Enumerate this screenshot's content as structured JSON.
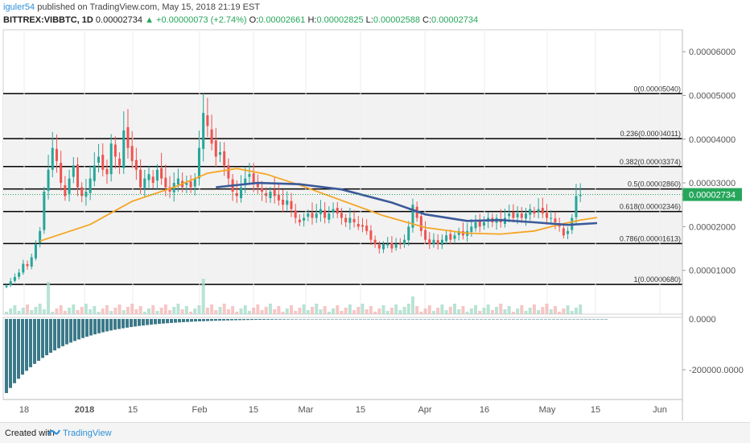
{
  "header": {
    "author": "iguler54",
    "published_text": "published on TradingView.com, May 15, 2018 21:19 EST",
    "symbol": "BITTREX:VIBBTC, 1D",
    "last": "0.00002734",
    "change": "▲ +0.00000073 (+2.74%)",
    "ohlc": [
      {
        "key": "O:",
        "value": "0.00002661"
      },
      {
        "key": "H:",
        "value": "0.00002825"
      },
      {
        "key": "L:",
        "value": "0.00002588"
      },
      {
        "key": "C:",
        "value": "0.00002734"
      }
    ]
  },
  "footer": {
    "created_with": "Created with",
    "brand": "TradingView"
  },
  "colors": {
    "up": "#26a69a",
    "down": "#ef5350",
    "ma_fast": "#f5a623",
    "ma_slow": "#3b5a9a",
    "fib_band": "#f2f2f2",
    "last_price_bg": "#26a65b",
    "depth": "#3c7a89"
  },
  "chart_data": {
    "type": "candlestick",
    "price_axis": {
      "ticks": [
        "0.00006000",
        "0.00005000",
        "0.00004000",
        "0.00003000",
        "0.00002000",
        "0.00001000",
        "0.0000"
      ],
      "range": [
        0.0,
        6.5e-05
      ]
    },
    "lower_axis": {
      "ticks": [
        "0.0000",
        "-200000.0000"
      ]
    },
    "x_ticks": [
      "18",
      "2018",
      "15",
      "Feb",
      "15",
      "Mar",
      "15",
      "Apr",
      "16",
      "May",
      "15",
      "Jun"
    ],
    "last_price_label": "0.00002734",
    "fib_levels": [
      {
        "ratio": "0",
        "value": 5.04e-05,
        "label": "0(0.00005040)"
      },
      {
        "ratio": "0.236",
        "value": 4.011e-05,
        "label": "0.236(0.00004011)"
      },
      {
        "ratio": "0.382",
        "value": 3.374e-05,
        "label": "0.382(0.00003374)"
      },
      {
        "ratio": "0.5",
        "value": 2.86e-05,
        "label": "0.5(0.00002860)"
      },
      {
        "ratio": "0.618",
        "value": 2.346e-05,
        "label": "0.618(0.00002346)"
      },
      {
        "ratio": "0.786",
        "value": 1.613e-05,
        "label": "0.786(0.00001613)"
      },
      {
        "ratio": "1",
        "value": 6.8e-06,
        "label": "1(0.00000680)"
      }
    ],
    "series": [
      {
        "name": "price",
        "start_date": "2017-12-12",
        "close": [
          6.5e-06,
          7.5e-06,
          8.5e-06,
          9.5e-06,
          1.15e-05,
          1.1e-05,
          1.3e-05,
          1.6e-05,
          1.9e-05,
          2.8e-05,
          3.3e-05,
          3.8e-05,
          3.5e-05,
          3e-05,
          2.7e-05,
          3.1e-05,
          3.4e-05,
          2.9e-05,
          2.7e-05,
          2.8e-05,
          3.1e-05,
          3.4e-05,
          3.6e-05,
          3.3e-05,
          3.2e-05,
          3.9e-05,
          3.6e-05,
          3.4e-05,
          4.2e-05,
          3.8e-05,
          3.5e-05,
          3.3e-05,
          2.9e-05,
          3.1e-05,
          3.2e-05,
          3e-05,
          3.3e-05,
          3.1e-05,
          2.9e-05,
          2.8e-05,
          3e-05,
          3.1e-05,
          2.9e-05,
          3e-05,
          2.9e-05,
          3.1e-05,
          3.8e-05,
          4.6e-05,
          4.3e-05,
          3.9e-05,
          3.6e-05,
          3.7e-05,
          3.4e-05,
          3.1e-05,
          2.8e-05,
          2.7e-05,
          2.9e-05,
          3.1e-05,
          3.2e-05,
          3e-05,
          2.9e-05,
          2.8e-05,
          2.7e-05,
          2.8e-05,
          2.7e-05,
          2.6e-05,
          2.5e-05,
          2.6e-05,
          2.4e-05,
          2.2e-05,
          2.1e-05,
          2.2e-05,
          2.3e-05,
          2.2e-05,
          2.3e-05,
          2.4e-05,
          2.2e-05,
          2.3e-05,
          2.4e-05,
          2.3e-05,
          2.2e-05,
          2.1e-05,
          2.2e-05,
          2.1e-05,
          2e-05,
          2e-05,
          1.9e-05,
          1.7e-05,
          1.6e-05,
          1.5e-05,
          1.6e-05,
          1.6e-05,
          1.5e-05,
          1.6e-05,
          1.6e-05,
          1.7e-05,
          2e-05,
          2.5e-05,
          2.2e-05,
          1.9e-05,
          1.7e-05,
          1.6e-05,
          1.7e-05,
          1.6e-05,
          1.7e-05,
          1.8e-05,
          1.7e-05,
          1.8e-05,
          1.9e-05,
          1.8e-05,
          1.9e-05,
          2e-05,
          2.1e-05,
          2e-05,
          2.1e-05,
          2.2e-05,
          2.1e-05,
          2.2e-05,
          2.1e-05,
          2.2e-05,
          2.3e-05,
          2.2e-05,
          2.3e-05,
          2.2e-05,
          2.3e-05,
          2.4e-05,
          2.3e-05,
          2.4e-05,
          2.3e-05,
          2.2e-05,
          2.2e-05,
          2.1e-05,
          2e-05,
          1.8e-05,
          1.9e-05,
          2.2e-05,
          2.7e-05,
          2.73e-05
        ]
      },
      {
        "name": "MA fast",
        "points": [
          [
            8,
            1.67e-05
          ],
          [
            20,
            2.05e-05
          ],
          [
            30,
            2.58e-05
          ],
          [
            40,
            2.9e-05
          ],
          [
            48,
            3.22e-05
          ],
          [
            55,
            3.33e-05
          ],
          [
            62,
            3.2e-05
          ],
          [
            70,
            2.95e-05
          ],
          [
            80,
            2.6e-05
          ],
          [
            90,
            2.25e-05
          ],
          [
            100,
            1.98e-05
          ],
          [
            110,
            1.85e-05
          ],
          [
            118,
            1.83e-05
          ],
          [
            126,
            1.9e-05
          ],
          [
            132,
            2.05e-05
          ],
          [
            137,
            2.15e-05
          ],
          [
            141,
            2.21e-05
          ]
        ]
      },
      {
        "name": "MA slow",
        "points": [
          [
            50,
            2.9e-05
          ],
          [
            60,
            3e-05
          ],
          [
            70,
            2.97e-05
          ],
          [
            80,
            2.85e-05
          ],
          [
            92,
            2.55e-05
          ],
          [
            100,
            2.28e-05
          ],
          [
            110,
            2.13e-05
          ],
          [
            118,
            2.15e-05
          ],
          [
            126,
            2.1e-05
          ],
          [
            134,
            2.04e-05
          ],
          [
            141,
            2.08e-05
          ]
        ]
      }
    ],
    "volume_note": "volume bars at bottom of price pane",
    "depth_note": "negative cumulative histogram in lower pane"
  }
}
